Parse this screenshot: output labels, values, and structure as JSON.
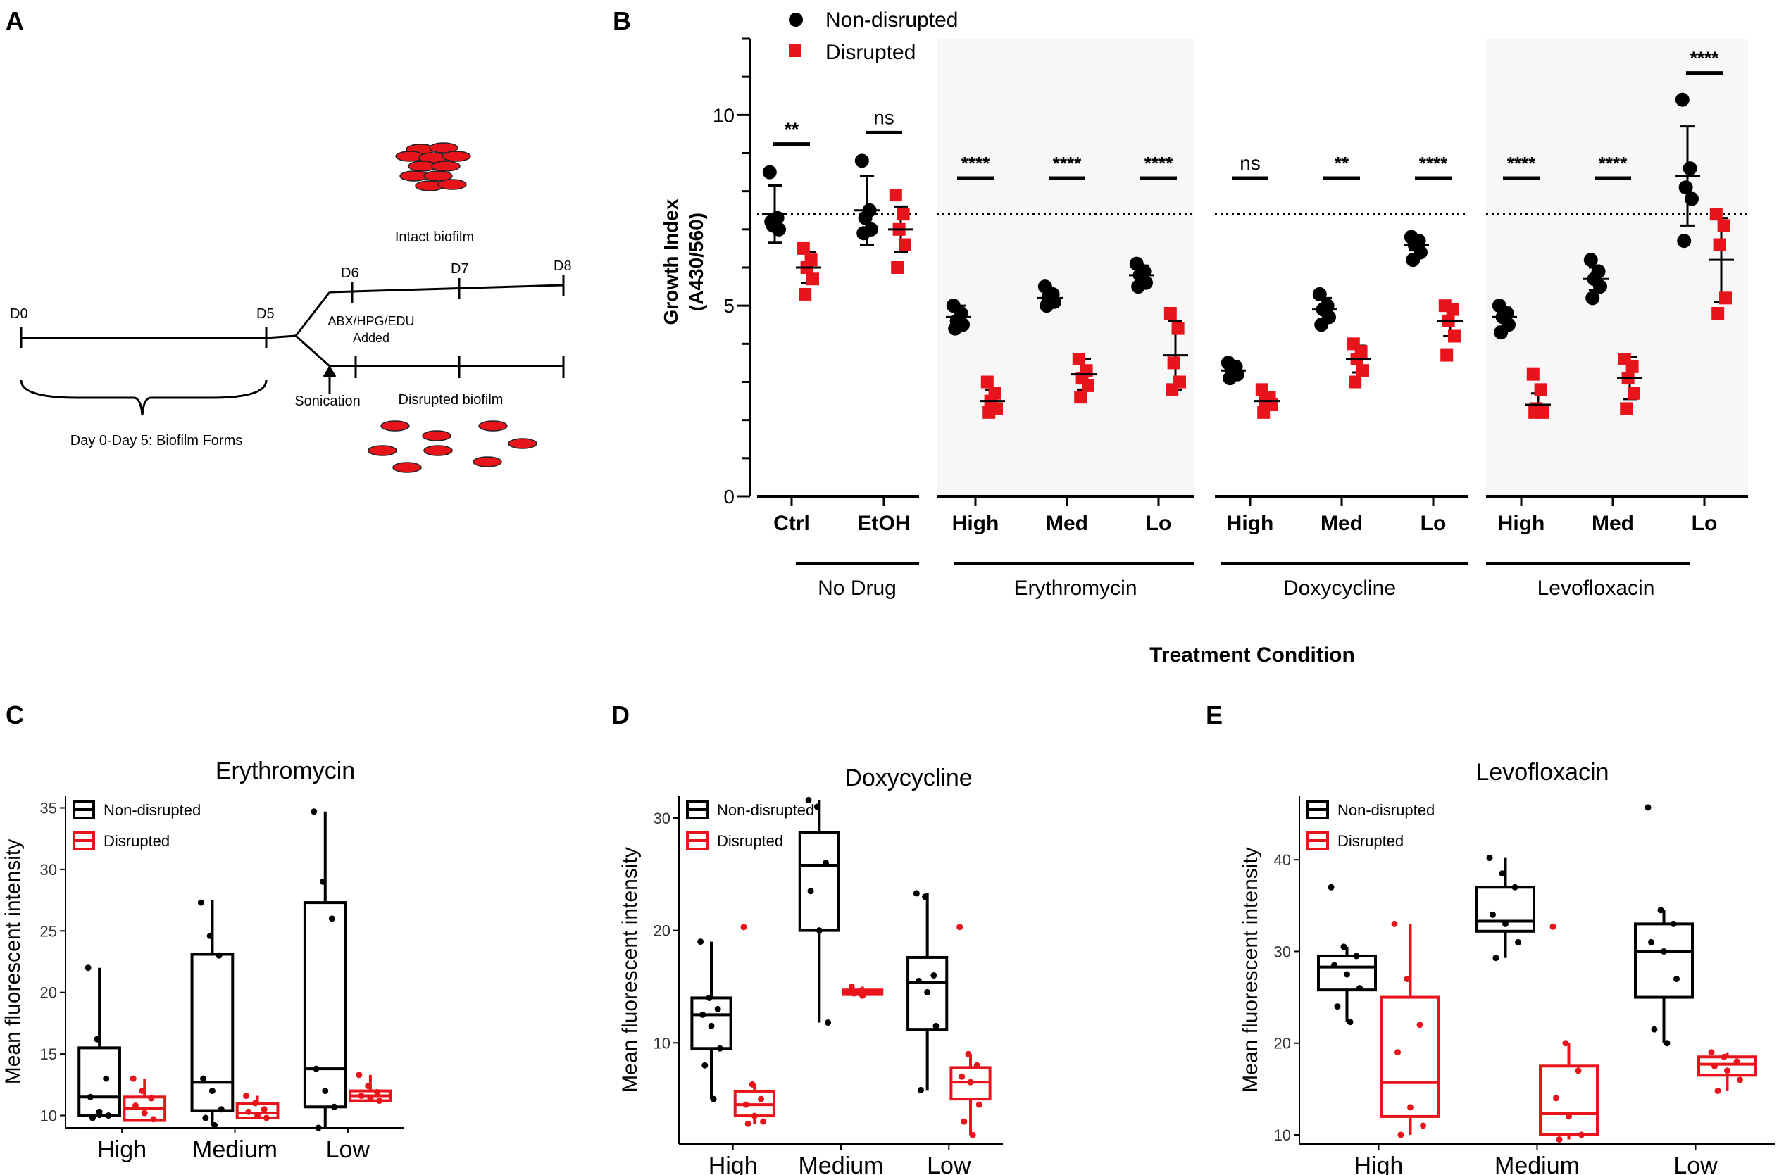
{
  "colors": {
    "black": "#000000",
    "red": "#e8141b",
    "grey_bg": "#f7f7f7"
  },
  "panel_a": {
    "label": "A",
    "intact_label": "Intact biofilm",
    "disrupted_label": "Disrupted biofilm",
    "days": [
      "D0",
      "D5",
      "D6",
      "D7",
      "D8"
    ],
    "added_label_1": "ABX/HPG/EDU",
    "added_label_2": "Added",
    "sonication_label": "Sonication",
    "brace_label": "Day 0-Day 5: Biofilm Forms"
  },
  "chart_data": [
    {
      "panel": "B",
      "type": "scatter",
      "ylabel_1": "Growth Index",
      "ylabel_2": "(A430/560)",
      "xlabel": "Treatment Condition",
      "ylim": [
        0,
        12
      ],
      "yticks": [
        0,
        5,
        10
      ],
      "reference_line": 7.4,
      "legend": [
        "Non-disrupted",
        "Disrupted"
      ],
      "groups": [
        {
          "name": "No Drug",
          "categories": [
            "Ctrl",
            "EtOH"
          ]
        },
        {
          "name": "Erythromycin",
          "categories": [
            "High",
            "Med",
            "Lo"
          ]
        },
        {
          "name": "Doxycycline",
          "categories": [
            "High",
            "Med",
            "Lo"
          ]
        },
        {
          "name": "Levofloxacin",
          "categories": [
            "High",
            "Med",
            "Lo"
          ]
        }
      ],
      "conditions": [
        {
          "cat": "Ctrl",
          "sig": "**",
          "nd": {
            "mean": 7.4,
            "sd": 0.75,
            "points": [
              8.5,
              7.3,
              7.1,
              7.0,
              7.2
            ]
          },
          "d": {
            "mean": 6.0,
            "sd": 0.4,
            "points": [
              6.5,
              6.2,
              6.0,
              5.7,
              5.3
            ]
          }
        },
        {
          "cat": "EtOH",
          "sig": "ns",
          "nd": {
            "mean": 7.5,
            "sd": 0.9,
            "points": [
              8.8,
              7.5,
              7.3,
              7.0,
              6.9
            ]
          },
          "d": {
            "mean": 7.0,
            "sd": 0.6,
            "points": [
              7.9,
              7.4,
              7.0,
              6.6,
              6.0
            ]
          }
        },
        {
          "cat": "High",
          "sig": "****",
          "nd": {
            "mean": 4.7,
            "sd": 0.3,
            "points": [
              5.0,
              4.8,
              4.6,
              4.5,
              4.4
            ]
          },
          "d": {
            "mean": 2.5,
            "sd": 0.3,
            "points": [
              3.0,
              2.7,
              2.5,
              2.3,
              2.2
            ]
          }
        },
        {
          "cat": "Med",
          "sig": "****",
          "nd": {
            "mean": 5.2,
            "sd": 0.15,
            "points": [
              5.5,
              5.3,
              5.2,
              5.1,
              5.0
            ]
          },
          "d": {
            "mean": 3.2,
            "sd": 0.4,
            "points": [
              3.6,
              3.3,
              3.1,
              2.9,
              2.6
            ]
          }
        },
        {
          "cat": "Lo",
          "sig": "****",
          "nd": {
            "mean": 5.8,
            "sd": 0.25,
            "points": [
              6.1,
              5.9,
              5.8,
              5.6,
              5.5
            ]
          },
          "d": {
            "mean": 3.7,
            "sd": 0.9,
            "points": [
              4.8,
              4.4,
              3.5,
              3.0,
              2.8
            ]
          }
        },
        {
          "cat": "High",
          "sig": "ns",
          "nd": {
            "mean": 3.3,
            "sd": 0.1,
            "points": [
              3.5,
              3.4,
              3.3,
              3.2,
              3.1
            ]
          },
          "d": {
            "mean": 2.5,
            "sd": 0.2,
            "points": [
              2.8,
              2.6,
              2.5,
              2.4,
              2.2
            ]
          }
        },
        {
          "cat": "Med",
          "sig": "**",
          "nd": {
            "mean": 4.9,
            "sd": 0.3,
            "points": [
              5.3,
              5.0,
              4.9,
              4.7,
              4.5
            ]
          },
          "d": {
            "mean": 3.6,
            "sd": 0.35,
            "points": [
              4.0,
              3.8,
              3.6,
              3.3,
              3.0
            ]
          }
        },
        {
          "cat": "Lo",
          "sig": "****",
          "nd": {
            "mean": 6.6,
            "sd": 0.15,
            "points": [
              6.8,
              6.7,
              6.6,
              6.4,
              6.2
            ]
          },
          "d": {
            "mean": 4.6,
            "sd": 0.4,
            "points": [
              5.0,
              4.9,
              4.6,
              4.2,
              3.7
            ]
          }
        },
        {
          "cat": "High",
          "sig": "****",
          "nd": {
            "mean": 4.7,
            "sd": 0.25,
            "points": [
              5.0,
              4.8,
              4.7,
              4.5,
              4.3
            ]
          },
          "d": {
            "mean": 2.4,
            "sd": 0.3,
            "points": [
              3.2,
              2.8,
              2.3,
              2.2,
              2.2
            ]
          }
        },
        {
          "cat": "Med",
          "sig": "****",
          "nd": {
            "mean": 5.7,
            "sd": 0.3,
            "points": [
              6.2,
              5.9,
              5.7,
              5.5,
              5.2
            ]
          },
          "d": {
            "mean": 3.1,
            "sd": 0.55,
            "points": [
              3.6,
              3.4,
              3.1,
              2.7,
              2.3
            ]
          }
        },
        {
          "cat": "Lo",
          "sig": "****",
          "nd": {
            "mean": 8.4,
            "sd": 1.3,
            "points": [
              10.4,
              8.6,
              8.1,
              7.8,
              6.7
            ]
          },
          "d": {
            "mean": 6.2,
            "sd": 1.1,
            "points": [
              7.4,
              7.1,
              6.6,
              5.2,
              4.8
            ]
          }
        }
      ]
    },
    {
      "panel": "C",
      "type": "box",
      "title": "Erythromycin",
      "ylabel": "Mean fluorescent intensity",
      "ylim": [
        9,
        36
      ],
      "yticks": [
        10,
        15,
        20,
        25,
        30,
        35
      ],
      "categories": [
        "High",
        "Medium",
        "Low"
      ],
      "legend": [
        "Non-disrupted",
        "Disrupted"
      ],
      "series": [
        {
          "name": "Non-disrupted",
          "boxes": [
            {
              "min": 9.8,
              "q1": 10.0,
              "median": 11.5,
              "q3": 15.5,
              "max": 22.0,
              "points": [
                22.0,
                16.2,
                13.0,
                11.5,
                10.3,
                10.0,
                9.8
              ]
            },
            {
              "min": 9.2,
              "q1": 10.4,
              "median": 12.7,
              "q3": 23.1,
              "max": 27.5,
              "points": [
                27.3,
                24.6,
                23.0,
                13.0,
                12.0,
                10.5,
                9.8,
                9.2
              ]
            },
            {
              "min": 9.0,
              "q1": 10.7,
              "median": 13.8,
              "q3": 27.3,
              "max": 34.7,
              "points": [
                34.7,
                29.0,
                26.0,
                13.8,
                12.0,
                10.7,
                9.0
              ]
            }
          ]
        },
        {
          "name": "Disrupted",
          "boxes": [
            {
              "min": 9.6,
              "q1": 9.6,
              "median": 10.6,
              "q3": 11.5,
              "max": 13.0,
              "points": [
                13.0,
                12.0,
                11.4,
                10.8,
                10.2,
                9.7
              ]
            },
            {
              "min": 9.8,
              "q1": 9.8,
              "median": 10.2,
              "q3": 11.0,
              "max": 11.6,
              "points": [
                11.6,
                11.0,
                10.5,
                10.3,
                10.0,
                9.8
              ]
            },
            {
              "min": 11.2,
              "q1": 11.2,
              "median": 11.6,
              "q3": 12.0,
              "max": 13.3,
              "points": [
                13.3,
                12.4,
                11.9,
                11.6,
                11.4,
                11.2
              ]
            }
          ]
        }
      ]
    },
    {
      "panel": "D",
      "type": "box",
      "title": "Doxycycline",
      "ylabel": "Mean fluorescent intensity",
      "ylim": [
        1,
        32
      ],
      "yticks": [
        10,
        20,
        30
      ],
      "categories": [
        "High",
        "Medium",
        "Low"
      ],
      "legend": [
        "Non-disrupted",
        "Disrupted"
      ],
      "series": [
        {
          "name": "Non-disrupted",
          "boxes": [
            {
              "min": 5.0,
              "q1": 9.5,
              "median": 12.5,
              "q3": 14.0,
              "max": 19.0,
              "points": [
                19.0,
                14.0,
                13.0,
                12.5,
                11.5,
                9.5,
                8.0,
                5.0
              ]
            },
            {
              "min": 11.8,
              "q1": 20.0,
              "median": 25.8,
              "q3": 28.7,
              "max": 31.6,
              "points": [
                31.6,
                31.0,
                26.0,
                23.5,
                20.0,
                11.8
              ]
            },
            {
              "min": 5.8,
              "q1": 11.2,
              "median": 15.4,
              "q3": 17.6,
              "max": 23.3,
              "points": [
                23.3,
                23.0,
                16.0,
                15.5,
                14.5,
                11.5,
                5.8
              ]
            }
          ]
        },
        {
          "name": "Disrupted",
          "boxes": [
            {
              "min": 2.8,
              "q1": 3.5,
              "median": 4.5,
              "q3": 5.7,
              "max": 6.3,
              "points": [
                20.3,
                6.3,
                5.0,
                4.5,
                3.5,
                3.0,
                2.8
              ]
            },
            {
              "min": 14.2,
              "q1": 14.3,
              "median": 14.5,
              "q3": 14.7,
              "max": 15.0,
              "points": [
                15.0,
                14.6,
                14.5,
                14.4,
                14.2
              ]
            },
            {
              "min": 1.8,
              "q1": 5.0,
              "median": 6.5,
              "q3": 7.8,
              "max": 9.0,
              "points": [
                20.3,
                9.0,
                8.0,
                7.0,
                6.5,
                4.5,
                3.0,
                1.8
              ]
            }
          ]
        }
      ]
    },
    {
      "panel": "E",
      "type": "box",
      "title": "Levofloxacin",
      "ylabel": "Mean fluorescent intensity",
      "ylim": [
        9,
        47
      ],
      "yticks": [
        10,
        20,
        30,
        40
      ],
      "categories": [
        "High",
        "Medium",
        "Low"
      ],
      "legend": [
        "Non-disrupted",
        "Disrupted"
      ],
      "series": [
        {
          "name": "Non-disrupted",
          "boxes": [
            {
              "min": 22.3,
              "q1": 25.8,
              "median": 28.3,
              "q3": 29.5,
              "max": 30.5,
              "points": [
                37.0,
                30.5,
                29.5,
                28.5,
                27.5,
                26.0,
                24.0,
                22.3
              ]
            },
            {
              "min": 29.3,
              "q1": 32.2,
              "median": 33.3,
              "q3": 37.0,
              "max": 40.2,
              "points": [
                40.2,
                38.5,
                37.0,
                34.0,
                33.0,
                31.0,
                29.3
              ]
            },
            {
              "min": 20.0,
              "q1": 25.0,
              "median": 30.0,
              "q3": 33.0,
              "max": 34.5,
              "points": [
                45.7,
                34.5,
                33.0,
                31.0,
                30.0,
                27.0,
                21.5,
                20.0
              ]
            }
          ]
        },
        {
          "name": "Disrupted",
          "boxes": [
            {
              "min": 10.0,
              "q1": 12.0,
              "median": 15.7,
              "q3": 25.0,
              "max": 33.0,
              "points": [
                33.0,
                27.0,
                22.0,
                19.0,
                13.0,
                11.0,
                10.0
              ]
            },
            {
              "min": 9.5,
              "q1": 10.0,
              "median": 12.3,
              "q3": 17.5,
              "max": 20.0,
              "points": [
                32.7,
                20.0,
                17.0,
                14.0,
                12.0,
                10.0,
                9.5
              ]
            },
            {
              "min": 14.8,
              "q1": 16.5,
              "median": 17.7,
              "q3": 18.5,
              "max": 19.0,
              "points": [
                19.0,
                18.5,
                18.0,
                17.5,
                17.0,
                16.0,
                14.8
              ]
            }
          ]
        }
      ]
    }
  ]
}
